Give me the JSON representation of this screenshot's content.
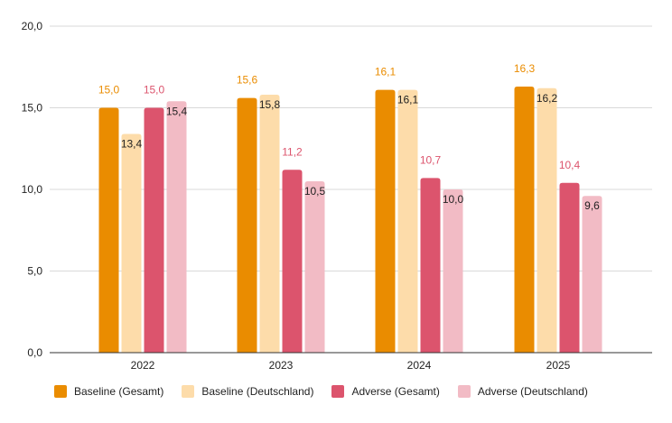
{
  "chart_data": {
    "type": "bar",
    "categories": [
      "2022",
      "2023",
      "2024",
      "2025"
    ],
    "series": [
      {
        "name": "Baseline (Gesamt)",
        "color": "#ea8c00",
        "label_color": "#ea8c00",
        "values": [
          15.0,
          15.6,
          16.1,
          16.3
        ],
        "labels": [
          "15,0",
          "15,6",
          "16,1",
          "16,3"
        ]
      },
      {
        "name": "Baseline (Deutschland)",
        "color": "#fddcaa",
        "label_color": "#222222",
        "values": [
          13.4,
          15.8,
          16.1,
          16.2
        ],
        "labels": [
          "13,4",
          "15,8",
          "16,1",
          "16,2"
        ]
      },
      {
        "name": "Adverse (Gesamt)",
        "color": "#dc546d",
        "label_color": "#dc546d",
        "values": [
          15.0,
          11.2,
          10.7,
          10.4
        ],
        "labels": [
          "15,0",
          "11,2",
          "10,7",
          "10,4"
        ]
      },
      {
        "name": "Adverse (Deutschland)",
        "color": "#f2bbc5",
        "label_color": "#222222",
        "values": [
          15.4,
          10.5,
          10.0,
          9.6
        ],
        "labels": [
          "15,4",
          "10,5",
          "10,0",
          "9,6"
        ]
      }
    ],
    "y_ticks": [
      0,
      5,
      10,
      15,
      20
    ],
    "y_tick_labels": [
      "0,0",
      "5,0",
      "10,0",
      "15,0",
      "20,0"
    ],
    "ylim": [
      0,
      20
    ],
    "grid": true,
    "legend_position": "bottom-left",
    "title": "",
    "xlabel": "",
    "ylabel": ""
  }
}
